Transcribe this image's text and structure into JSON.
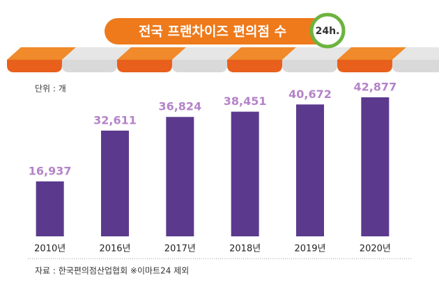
{
  "chart_data": {
    "type": "bar",
    "title": "전국 프랜차이즈 편의점 수",
    "badge": "24h.",
    "unit_label": "단위 : 개",
    "source": "자료 : 한국편의점산업협회  ※이마트24 제외",
    "categories": [
      "2010년",
      "2016년",
      "2017년",
      "2018년",
      "2019년",
      "2020년"
    ],
    "values": [
      16937,
      32611,
      36824,
      38451,
      40672,
      42877
    ],
    "value_labels": [
      "16,937",
      "32,611",
      "36,824",
      "38,451",
      "40,672",
      "42,877"
    ],
    "color": "#5b3a8e"
  }
}
